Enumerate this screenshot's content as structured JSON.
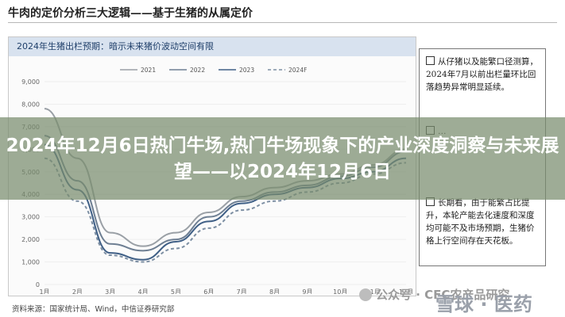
{
  "page": {
    "title": "牛肉的定价分析三大逻辑——基于生猪的从属定价",
    "chart_header": "2024年生猪出栏预期：暗示未来猪价波动空间有限",
    "source": "资料来源：国家统计局、Wind，中信证券研究部",
    "headline": "2024年12月6日热门牛场,热门牛场现象下的产业深度洞察与未来展望——以2024年12月6日",
    "watermark_text": "公众号 · CFC农产品研究",
    "watermark_logo": "雪球 · 医药"
  },
  "notes": [
    {
      "text": "从仔猪以及能繁口径测算，2024年7月以前出栏量环比回落趋势异常明显延续。"
    },
    {
      "text": "…"
    },
    {
      "text": "长期看，由于能繁占比提升，本轮产能去化速度和深度均可能不及市场预期，生猪价格上行空间存在天花板。"
    }
  ],
  "chart_data": {
    "type": "line",
    "title": "",
    "xlabel": "",
    "ylabel": "",
    "ylim": [
      0,
      9000
    ],
    "y_ticks": [
      "9,000",
      "8,000",
      "7,000",
      "6,000",
      "5,000",
      "4,000",
      "3,000",
      "2,000",
      "1,000",
      "0"
    ],
    "x": [
      1,
      2,
      3,
      4,
      5,
      6,
      7,
      8,
      9,
      10,
      11,
      12
    ],
    "x_ticks": [
      "1月",
      "2月",
      "3月",
      "4月",
      "5月",
      "6月",
      "7月",
      "8月",
      "9月",
      "10月",
      "11月",
      "12月"
    ],
    "legend_position": "top-center",
    "series": [
      {
        "name": "2021",
        "color": "#9aa0a6",
        "dash": "",
        "values": [
          7800,
          5600,
          2300,
          1700,
          2300,
          3200,
          3900,
          4300,
          4600,
          4900,
          5300,
          6000
        ]
      },
      {
        "name": "2022",
        "color": "#6e7f93",
        "dash": "",
        "values": [
          6600,
          4600,
          1800,
          1500,
          2000,
          3000,
          3700,
          4100,
          4400,
          4800,
          5200,
          5900
        ]
      },
      {
        "name": "2023",
        "color": "#3f5f86",
        "dash": "",
        "values": [
          6200,
          4200,
          1400,
          1100,
          1900,
          2800,
          3600,
          4000,
          4300,
          4700,
          5000,
          5600
        ]
      },
      {
        "name": "2024F",
        "color": "#7d8fa3",
        "dash": "4,3",
        "values": [
          5600,
          3700,
          1300,
          1000,
          1600,
          2500,
          3300,
          3700,
          4100,
          4500,
          4900,
          5400
        ]
      }
    ]
  }
}
